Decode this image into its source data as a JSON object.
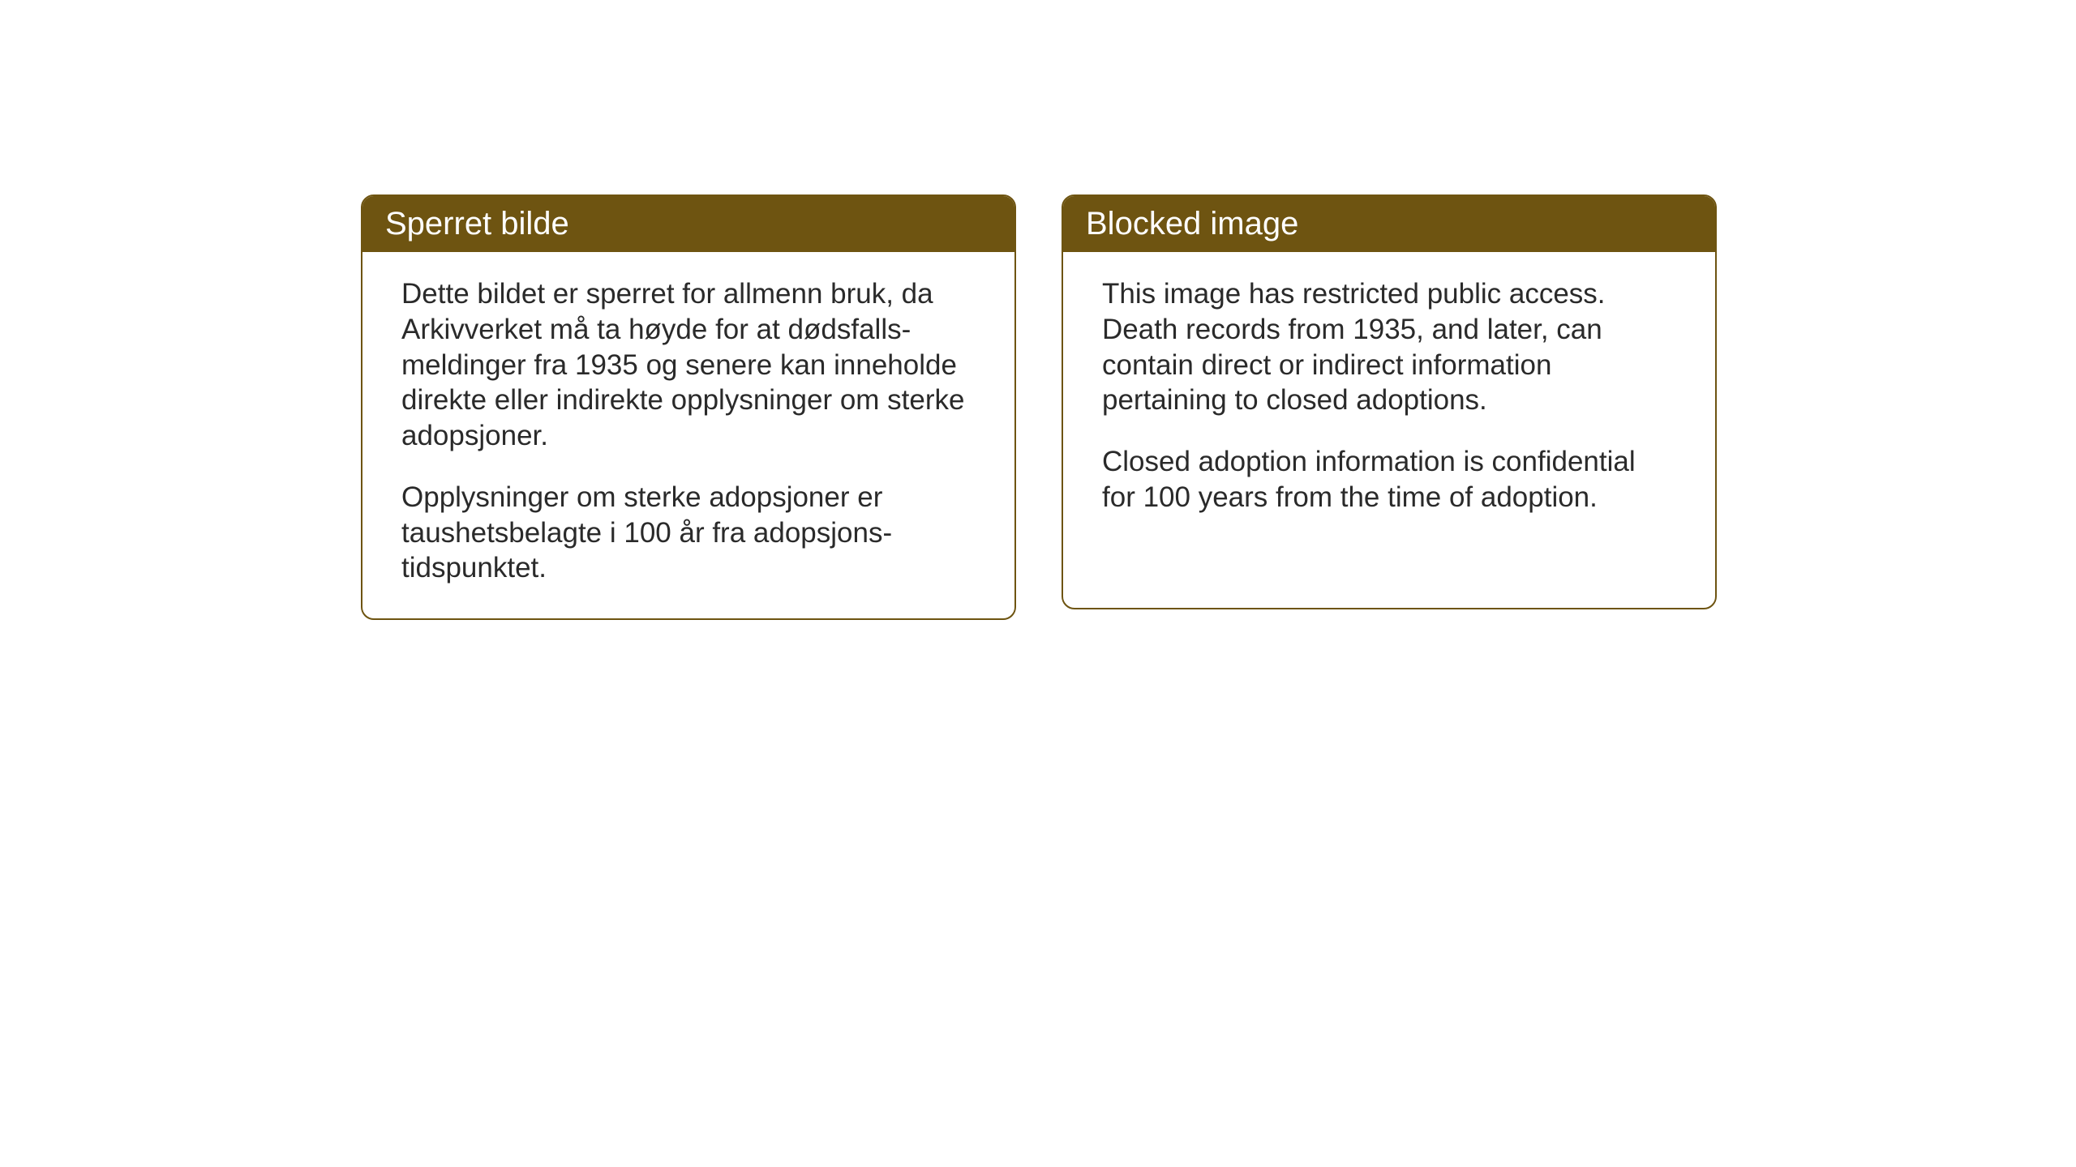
{
  "cards": {
    "left": {
      "title": "Sperret bilde",
      "paragraph1": "Dette bildet er sperret for allmenn bruk, da Arkivverket må ta høyde for at dødsfalls-meldinger fra 1935 og senere kan inneholde direkte eller indirekte opplysninger om sterke adopsjoner.",
      "paragraph2": "Opplysninger om sterke adopsjoner er taushetsbelagte i 100 år fra adopsjons-tidspunktet."
    },
    "right": {
      "title": "Blocked image",
      "paragraph1": "This image has restricted public access. Death records from 1935, and later, can contain direct or indirect information pertaining to closed adoptions.",
      "paragraph2": "Closed adoption information is confidential for 100 years from the time of adoption."
    }
  },
  "styling": {
    "header_background": "#6e5411",
    "header_text_color": "#ffffff",
    "border_color": "#6e5411",
    "body_text_color": "#2a2a2a",
    "background_color": "#ffffff",
    "title_fontsize": 40,
    "body_fontsize": 35,
    "border_radius": 16,
    "border_width": 2
  }
}
